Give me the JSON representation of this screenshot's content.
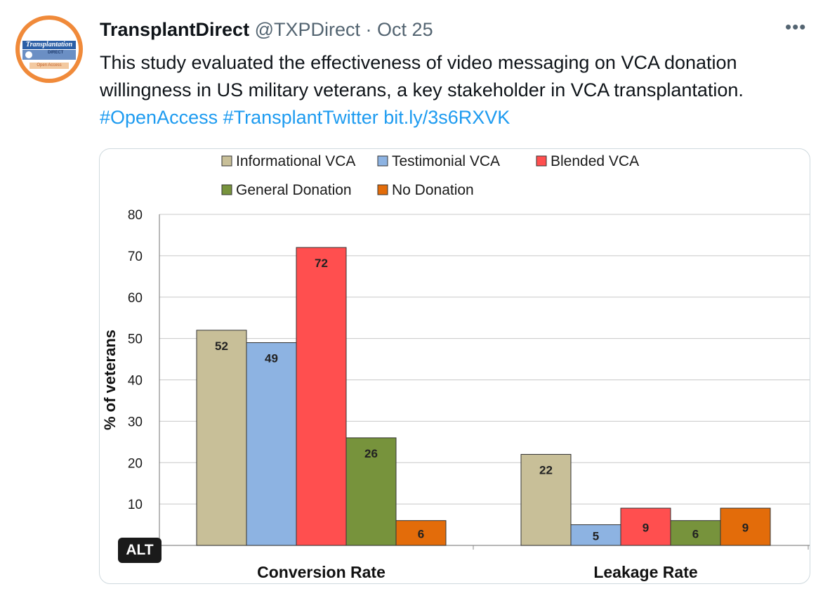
{
  "tweet": {
    "author_name": "TransplantDirect",
    "handle": "@TXPDirect",
    "separator": "·",
    "date": "Oct 25",
    "more_icon": "•••",
    "text_part1": "This study evaluated the effectiveness of video messaging on VCA donation willingness in US military veterans, a key stakeholder in VCA transplantation.",
    "hashtag1": "#OpenAccess",
    "hashtag2": "#TransplantTwitter",
    "link": "bit.ly/3s6RXVK",
    "alt_label": "ALT"
  },
  "avatar": {
    "title": "Transplantation",
    "subtitle": "DIRECT",
    "tag": "Open Access"
  },
  "chart_data": {
    "type": "bar",
    "categories": [
      "Conversion Rate",
      "Leakage Rate"
    ],
    "series": [
      {
        "name": "Informational VCA",
        "values": [
          52,
          22
        ],
        "color": "#c8bf98"
      },
      {
        "name": "Testimonial VCA",
        "values": [
          49,
          5
        ],
        "color": "#8db3e2"
      },
      {
        "name": "Blended VCA",
        "values": [
          72,
          9
        ],
        "color": "#ff4f4f"
      },
      {
        "name": "General Donation",
        "values": [
          26,
          6
        ],
        "color": "#77933c"
      },
      {
        "name": "No Donation",
        "values": [
          6,
          9
        ],
        "color": "#e36c0a"
      }
    ],
    "ylabel": "% of veterans",
    "xlabel": "",
    "ylim": [
      0,
      80
    ],
    "yticks": [
      0,
      10,
      20,
      30,
      40,
      50,
      60,
      70,
      80
    ],
    "grid": true,
    "legend_position": "top"
  }
}
